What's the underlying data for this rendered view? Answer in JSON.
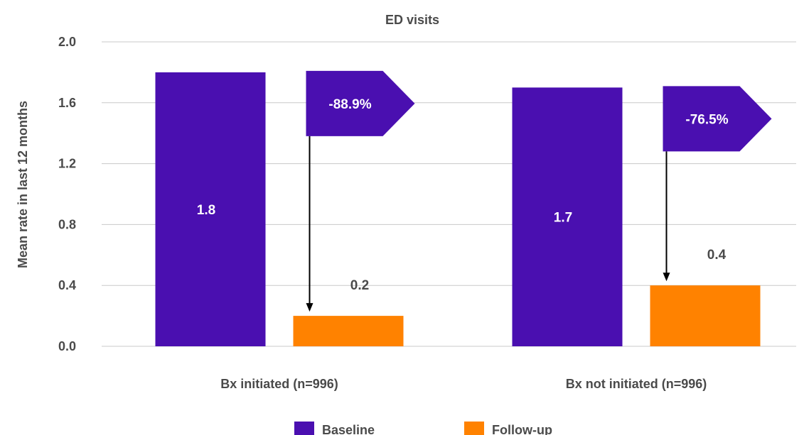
{
  "chart_data": {
    "type": "bar",
    "title": "ED visits",
    "ylabel": "Mean rate in last 12 months",
    "xlabel": "",
    "ylim": [
      0,
      2.0
    ],
    "yticks": [
      "0.0",
      "0.4",
      "0.8",
      "1.2",
      "1.6",
      "2.0"
    ],
    "categories": [
      "Bx initiated (n=996)",
      "Bx not initiated (n=996)"
    ],
    "series": [
      {
        "name": "Baseline",
        "values": [
          1.8,
          1.7
        ],
        "labels": [
          "1.8",
          "1.7"
        ],
        "color": "#4a0fb0"
      },
      {
        "name": "Follow-up",
        "values": [
          0.2,
          0.4
        ],
        "labels": [
          "0.2",
          "0.4"
        ],
        "color": "#ff8200"
      }
    ],
    "annotations": [
      "-88.9%",
      "-76.5%"
    ],
    "grid": true,
    "legend_position": "bottom"
  }
}
